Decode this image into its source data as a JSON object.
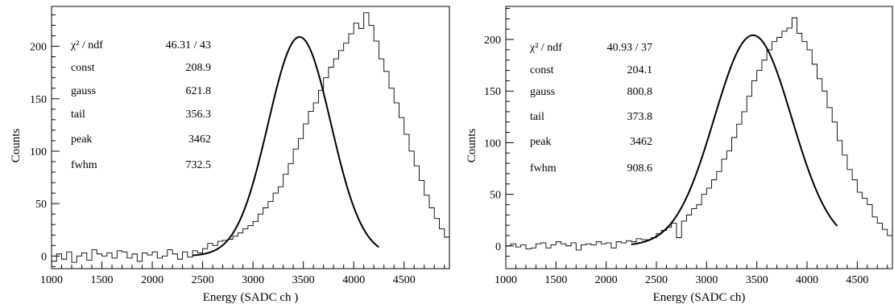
{
  "chart_data": [
    {
      "type": "histogram",
      "xlabel": "Energy (SADC ch )",
      "ylabel": "Counts",
      "xlim": [
        1000,
        4950
      ],
      "ylim": [
        -12,
        238
      ],
      "xticks": [
        1000,
        1500,
        2000,
        2500,
        3000,
        3500,
        4000,
        4500
      ],
      "yticks": [
        0,
        50,
        100,
        150,
        200
      ],
      "bin_width": 50,
      "histogram": {
        "bin_start": 1000,
        "counts": [
          -5,
          2,
          -3,
          4,
          -6,
          0,
          3,
          -4,
          6,
          2,
          0,
          3,
          -2,
          5,
          4,
          -2,
          2,
          -5,
          3,
          1,
          4,
          -2,
          0,
          6,
          2,
          -3,
          4,
          -1,
          5,
          3,
          7,
          12,
          10,
          14,
          15,
          16,
          19,
          22,
          26,
          29,
          33,
          40,
          46,
          52,
          60,
          66,
          78,
          88,
          102,
          112,
          126,
          138,
          146,
          158,
          170,
          180,
          188,
          196,
          203,
          212,
          222,
          217,
          232,
          220,
          205,
          188,
          176,
          160,
          146,
          132,
          116,
          100,
          86,
          72,
          58,
          46,
          36,
          26,
          18,
          12,
          10,
          6,
          8,
          4,
          2,
          5,
          4,
          2,
          6,
          3,
          4,
          1,
          5,
          3,
          2,
          4,
          3,
          1,
          2
        ]
      },
      "fit": {
        "peak": 3462,
        "amplitude": 208.9,
        "sigma": 311,
        "x_range": [
          2400,
          4250
        ]
      },
      "stats": [
        {
          "label": "χ² / ndf",
          "value": "46.31 / 43"
        },
        {
          "label": "const",
          "value": "208.9"
        },
        {
          "label": "gauss",
          "value": "621.8"
        },
        {
          "label": "tail",
          "value": "356.3"
        },
        {
          "label": "peak",
          "value": "3462"
        },
        {
          "label": "fwhm",
          "value": "732.5"
        }
      ]
    },
    {
      "type": "histogram",
      "xlabel": "Energy (SADC ch)",
      "ylabel": "Counts",
      "xlim": [
        1000,
        4850
      ],
      "ylim": [
        -22,
        232
      ],
      "xticks": [
        1000,
        1500,
        2000,
        2500,
        3000,
        3500,
        4000,
        4500
      ],
      "yticks": [
        0,
        50,
        100,
        150,
        200
      ],
      "bin_width": 50,
      "histogram": {
        "bin_start": 1000,
        "counts": [
          0,
          2,
          -1,
          1,
          -3,
          -2,
          2,
          3,
          -2,
          1,
          4,
          2,
          0,
          3,
          -4,
          1,
          2,
          1,
          4,
          2,
          3,
          -2,
          4,
          3,
          5,
          4,
          7,
          6,
          6,
          8,
          12,
          15,
          18,
          22,
          8,
          24,
          30,
          36,
          40,
          50,
          56,
          64,
          72,
          84,
          92,
          105,
          118,
          130,
          145,
          160,
          170,
          180,
          190,
          198,
          202,
          208,
          211,
          221,
          206,
          198,
          190,
          176,
          162,
          150,
          134,
          120,
          102,
          88,
          74,
          64,
          52,
          46,
          40,
          28,
          22,
          16,
          10,
          8,
          5,
          12,
          7,
          5,
          8,
          4,
          6,
          3,
          5,
          2,
          4,
          1,
          3,
          2,
          1,
          2,
          0,
          1,
          2
        ]
      },
      "fit": {
        "peak": 3462,
        "amplitude": 204.1,
        "sigma": 386,
        "x_range": [
          2250,
          4300
        ]
      },
      "stats": [
        {
          "label": "χ² / ndf",
          "value": "40.93 / 37"
        },
        {
          "label": "const",
          "value": "204.1"
        },
        {
          "label": "gauss",
          "value": "800.8"
        },
        {
          "label": "tail",
          "value": "373.8"
        },
        {
          "label": "peak",
          "value": "3462"
        },
        {
          "label": "fwhm",
          "value": "908.6"
        }
      ]
    }
  ]
}
